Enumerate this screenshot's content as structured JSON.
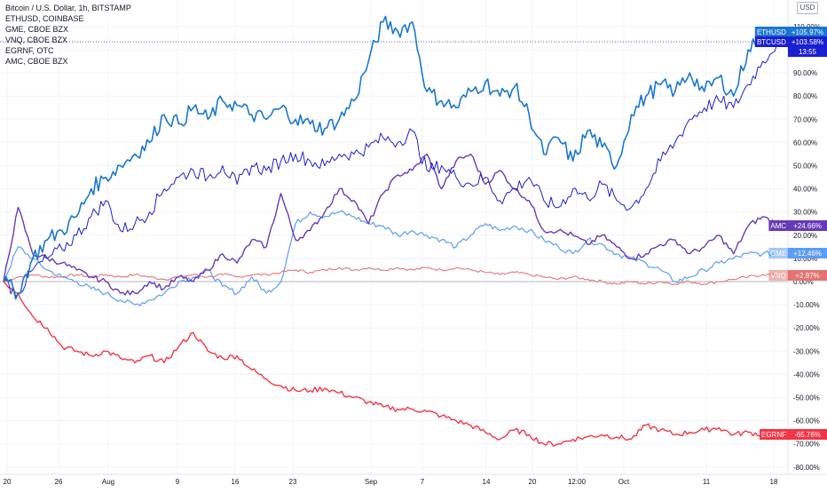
{
  "legend": {
    "main": "Bitcoin / U.S. Dollar, 1h, BITSTAMP",
    "items": [
      "ETHUSD, COINBASE",
      "GME, CBOE BZX",
      "VNQ, CBOE BZX",
      "EGRNF, OTC",
      "AMC, CBOE BZX"
    ]
  },
  "currency": "USD",
  "colors": {
    "ETHUSD": "#1976d2",
    "BTCUSD": "#1a1fd0",
    "AMC": "#673ab7",
    "GME": "#5b9cf6",
    "VNQ": "#e57373",
    "EGRNF": "#f23645",
    "grid": "#f0f3fa",
    "axis_text": "#131722"
  },
  "chart_data": {
    "type": "line",
    "x_tick_labels": [
      "20",
      "26",
      "Aug",
      "9",
      "16",
      "23",
      "Sep",
      "7",
      "14",
      "20",
      "12:00",
      "Oct",
      "11",
      "18"
    ],
    "y_tick_labels": [
      "110.00%",
      "100.00%",
      "90.00%",
      "80.00%",
      "70.00%",
      "60.00%",
      "50.00%",
      "40.00%",
      "30.00%",
      "20.00%",
      "10.00%",
      "0.00%",
      "-10.00%",
      "-20.00%",
      "-30.00%",
      "-40.00%",
      "-50.00%",
      "-60.00%",
      "-70.00%",
      "-80.00%"
    ],
    "y_unit": "%",
    "ylim": [
      -82,
      118
    ],
    "series": [
      {
        "name": "ETHUSD",
        "label": "ETHUSD",
        "last_value": "+105.97%",
        "values": [
          0,
          -5,
          10,
          18,
          22,
          28,
          40,
          45,
          50,
          55,
          60,
          72,
          68,
          75,
          70,
          78,
          76,
          72,
          70,
          75,
          70,
          68,
          66,
          70,
          78,
          95,
          112,
          108,
          112,
          82,
          78,
          75,
          82,
          86,
          80,
          84,
          72,
          55,
          62,
          52,
          65,
          58,
          50,
          72,
          80,
          85,
          82,
          90,
          82,
          88,
          80,
          100,
          108,
          106
        ]
      },
      {
        "name": "BTCUSD",
        "label": "BTCUSD",
        "last_value": "+103.58%",
        "sub_label": "13:55",
        "values": [
          0,
          -5,
          5,
          10,
          14,
          20,
          28,
          35,
          22,
          25,
          30,
          40,
          45,
          48,
          45,
          50,
          42,
          50,
          48,
          52,
          55,
          52,
          50,
          55,
          55,
          58,
          62,
          60,
          65,
          48,
          50,
          45,
          42,
          45,
          35,
          40,
          45,
          35,
          32,
          40,
          36,
          42,
          35,
          32,
          40,
          52,
          60,
          70,
          75,
          78,
          75,
          85,
          95,
          103
        ]
      },
      {
        "name": "AMC",
        "label": "AMC",
        "last_value": "+24.66%",
        "values": [
          0,
          32,
          12,
          10,
          8,
          5,
          2,
          0,
          -5,
          -5,
          0,
          -3,
          2,
          0,
          5,
          12,
          8,
          18,
          15,
          38,
          18,
          22,
          30,
          40,
          35,
          25,
          38,
          46,
          48,
          55,
          40,
          52,
          55,
          42,
          48,
          40,
          35,
          22,
          22,
          20,
          16,
          20,
          15,
          10,
          12,
          16,
          18,
          12,
          15,
          20,
          12,
          24,
          28,
          25
        ]
      },
      {
        "name": "GME",
        "label": "GME",
        "last_value": "+12.46%",
        "values": [
          0,
          15,
          10,
          5,
          2,
          0,
          -3,
          -5,
          -8,
          -10,
          -8,
          -5,
          0,
          2,
          5,
          -2,
          -5,
          2,
          -5,
          0,
          25,
          30,
          28,
          30,
          28,
          25,
          24,
          20,
          22,
          20,
          18,
          15,
          20,
          25,
          22,
          24,
          22,
          18,
          15,
          12,
          18,
          16,
          12,
          10,
          8,
          5,
          0,
          2,
          5,
          8,
          10,
          12,
          12,
          12
        ]
      },
      {
        "name": "VNQ",
        "label": "VNQ",
        "last_value": "+2.97%",
        "values": [
          0,
          2,
          3,
          2,
          2,
          3,
          2,
          3,
          2,
          3,
          2,
          1,
          2,
          3,
          2,
          3,
          2,
          3,
          3,
          4,
          5,
          4,
          5,
          6,
          5,
          6,
          5,
          6,
          5,
          6,
          5,
          6,
          5,
          4,
          3,
          4,
          3,
          2,
          1,
          2,
          1,
          0,
          -1,
          0,
          -1,
          0,
          -1,
          0,
          -1,
          0,
          1,
          2,
          3,
          3
        ]
      },
      {
        "name": "EGRNF",
        "label": "EGRNF",
        "last_value": "-65.76%",
        "values": [
          0,
          -5,
          -15,
          -20,
          -28,
          -30,
          -32,
          -30,
          -33,
          -35,
          -32,
          -35,
          -28,
          -22,
          -30,
          -33,
          -32,
          -38,
          -42,
          -45,
          -47,
          -47,
          -46,
          -48,
          -50,
          -52,
          -54,
          -55,
          -55,
          -56,
          -58,
          -60,
          -62,
          -65,
          -68,
          -64,
          -66,
          -70,
          -70,
          -68,
          -67,
          -66,
          -67,
          -68,
          -62,
          -64,
          -66,
          -65,
          -64,
          -63,
          -66,
          -65,
          -66,
          -66
        ]
      }
    ]
  }
}
